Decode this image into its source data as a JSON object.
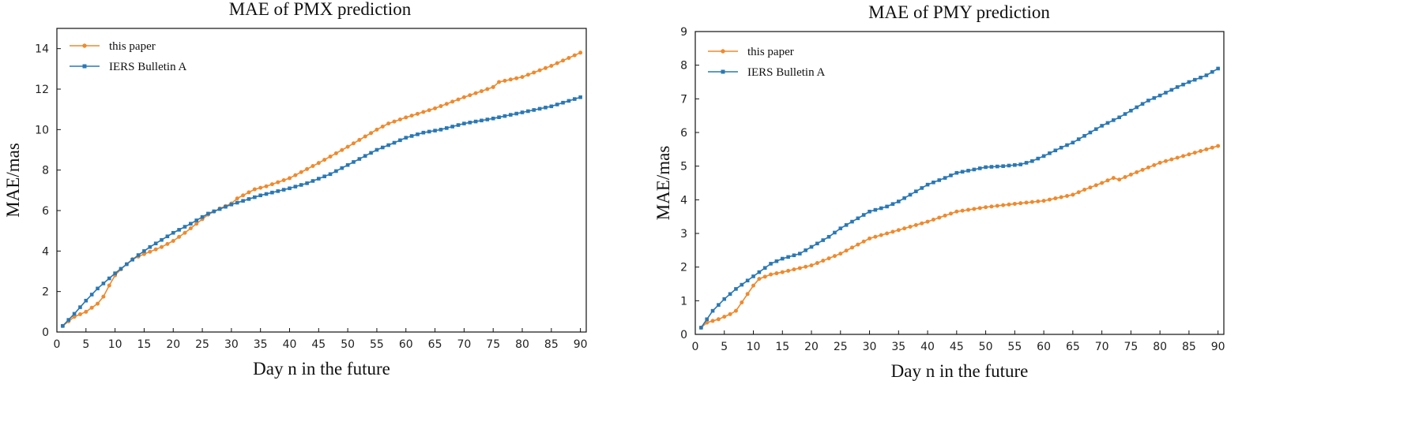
{
  "colors": {
    "this_paper": "#ee8a2e",
    "iers": "#2a78b4"
  },
  "chart_data": [
    {
      "type": "line",
      "title": "MAE of PMX prediction",
      "xlabel": "Day n in the future",
      "ylabel": "MAE/mas",
      "xlim": [
        0,
        91
      ],
      "ylim": [
        0,
        15
      ],
      "xticks": [
        0,
        5,
        10,
        15,
        20,
        25,
        30,
        35,
        40,
        45,
        50,
        55,
        60,
        65,
        70,
        75,
        80,
        85,
        90
      ],
      "yticks": [
        0,
        2,
        4,
        6,
        8,
        10,
        12,
        14
      ],
      "legend_position": "top-left",
      "series": [
        {
          "name": "this paper",
          "color_key": "this_paper",
          "marker": "circle",
          "knots": [
            [
              1,
              0.3
            ],
            [
              3,
              0.75
            ],
            [
              5,
              1.0
            ],
            [
              7,
              1.4
            ],
            [
              8,
              1.75
            ],
            [
              9,
              2.3
            ],
            [
              10,
              2.8
            ],
            [
              11,
              3.1
            ],
            [
              13,
              3.6
            ],
            [
              15,
              3.85
            ],
            [
              18,
              4.2
            ],
            [
              20,
              4.5
            ],
            [
              22,
              4.9
            ],
            [
              24,
              5.35
            ],
            [
              26,
              5.8
            ],
            [
              28,
              6.1
            ],
            [
              30,
              6.35
            ],
            [
              31,
              6.6
            ],
            [
              33,
              6.9
            ],
            [
              34,
              7.05
            ],
            [
              36,
              7.2
            ],
            [
              40,
              7.6
            ],
            [
              43,
              8.05
            ],
            [
              45,
              8.35
            ],
            [
              50,
              9.15
            ],
            [
              55,
              10.0
            ],
            [
              57,
              10.3
            ],
            [
              60,
              10.6
            ],
            [
              65,
              11.05
            ],
            [
              70,
              11.6
            ],
            [
              75,
              12.1
            ],
            [
              76,
              12.35
            ],
            [
              80,
              12.6
            ],
            [
              85,
              13.15
            ],
            [
              90,
              13.8
            ]
          ]
        },
        {
          "name": "IERS Bulletin A",
          "color_key": "iers",
          "marker": "square",
          "knots": [
            [
              1,
              0.3
            ],
            [
              3,
              0.9
            ],
            [
              5,
              1.55
            ],
            [
              7,
              2.15
            ],
            [
              9,
              2.65
            ],
            [
              10,
              2.9
            ],
            [
              12,
              3.35
            ],
            [
              14,
              3.8
            ],
            [
              16,
              4.2
            ],
            [
              18,
              4.55
            ],
            [
              20,
              4.9
            ],
            [
              23,
              5.35
            ],
            [
              26,
              5.85
            ],
            [
              30,
              6.3
            ],
            [
              35,
              6.75
            ],
            [
              40,
              7.1
            ],
            [
              43,
              7.35
            ],
            [
              47,
              7.8
            ],
            [
              50,
              8.25
            ],
            [
              53,
              8.7
            ],
            [
              55,
              9.0
            ],
            [
              58,
              9.35
            ],
            [
              60,
              9.6
            ],
            [
              63,
              9.85
            ],
            [
              66,
              10.0
            ],
            [
              70,
              10.3
            ],
            [
              75,
              10.55
            ],
            [
              80,
              10.85
            ],
            [
              85,
              11.15
            ],
            [
              90,
              11.6
            ]
          ]
        }
      ]
    },
    {
      "type": "line",
      "title": "MAE of PMY prediction",
      "xlabel": "Day n in the future",
      "ylabel": "MAE/mas",
      "xlim": [
        0,
        91
      ],
      "ylim": [
        0,
        9
      ],
      "xticks": [
        0,
        5,
        10,
        15,
        20,
        25,
        30,
        35,
        40,
        45,
        50,
        55,
        60,
        65,
        70,
        75,
        80,
        85,
        90
      ],
      "yticks": [
        0,
        1,
        2,
        3,
        4,
        5,
        6,
        7,
        8,
        9
      ],
      "legend_position": "top-left",
      "series": [
        {
          "name": "this paper",
          "color_key": "this_paper",
          "marker": "circle",
          "knots": [
            [
              1,
              0.2
            ],
            [
              2,
              0.35
            ],
            [
              4,
              0.45
            ],
            [
              6,
              0.6
            ],
            [
              7,
              0.7
            ],
            [
              8,
              0.95
            ],
            [
              9,
              1.2
            ],
            [
              10,
              1.45
            ],
            [
              11,
              1.65
            ],
            [
              13,
              1.78
            ],
            [
              15,
              1.85
            ],
            [
              20,
              2.05
            ],
            [
              25,
              2.4
            ],
            [
              30,
              2.85
            ],
            [
              35,
              3.1
            ],
            [
              40,
              3.35
            ],
            [
              45,
              3.65
            ],
            [
              50,
              3.78
            ],
            [
              55,
              3.88
            ],
            [
              60,
              3.97
            ],
            [
              65,
              4.15
            ],
            [
              67,
              4.3
            ],
            [
              70,
              4.5
            ],
            [
              72,
              4.65
            ],
            [
              73,
              4.6
            ],
            [
              75,
              4.75
            ],
            [
              80,
              5.1
            ],
            [
              85,
              5.35
            ],
            [
              90,
              5.6
            ]
          ]
        },
        {
          "name": "IERS Bulletin A",
          "color_key": "iers",
          "marker": "square",
          "knots": [
            [
              1,
              0.2
            ],
            [
              2,
              0.45
            ],
            [
              3,
              0.7
            ],
            [
              5,
              1.05
            ],
            [
              7,
              1.35
            ],
            [
              9,
              1.6
            ],
            [
              11,
              1.85
            ],
            [
              13,
              2.1
            ],
            [
              15,
              2.25
            ],
            [
              18,
              2.4
            ],
            [
              20,
              2.6
            ],
            [
              23,
              2.9
            ],
            [
              25,
              3.15
            ],
            [
              28,
              3.45
            ],
            [
              30,
              3.65
            ],
            [
              33,
              3.8
            ],
            [
              35,
              3.95
            ],
            [
              38,
              4.25
            ],
            [
              40,
              4.45
            ],
            [
              43,
              4.65
            ],
            [
              45,
              4.8
            ],
            [
              48,
              4.9
            ],
            [
              50,
              4.97
            ],
            [
              53,
              5.0
            ],
            [
              56,
              5.05
            ],
            [
              58,
              5.15
            ],
            [
              60,
              5.3
            ],
            [
              63,
              5.55
            ],
            [
              65,
              5.7
            ],
            [
              68,
              6.0
            ],
            [
              70,
              6.2
            ],
            [
              73,
              6.45
            ],
            [
              75,
              6.65
            ],
            [
              78,
              6.95
            ],
            [
              80,
              7.1
            ],
            [
              83,
              7.35
            ],
            [
              85,
              7.5
            ],
            [
              88,
              7.7
            ],
            [
              90,
              7.9
            ]
          ]
        }
      ]
    }
  ]
}
